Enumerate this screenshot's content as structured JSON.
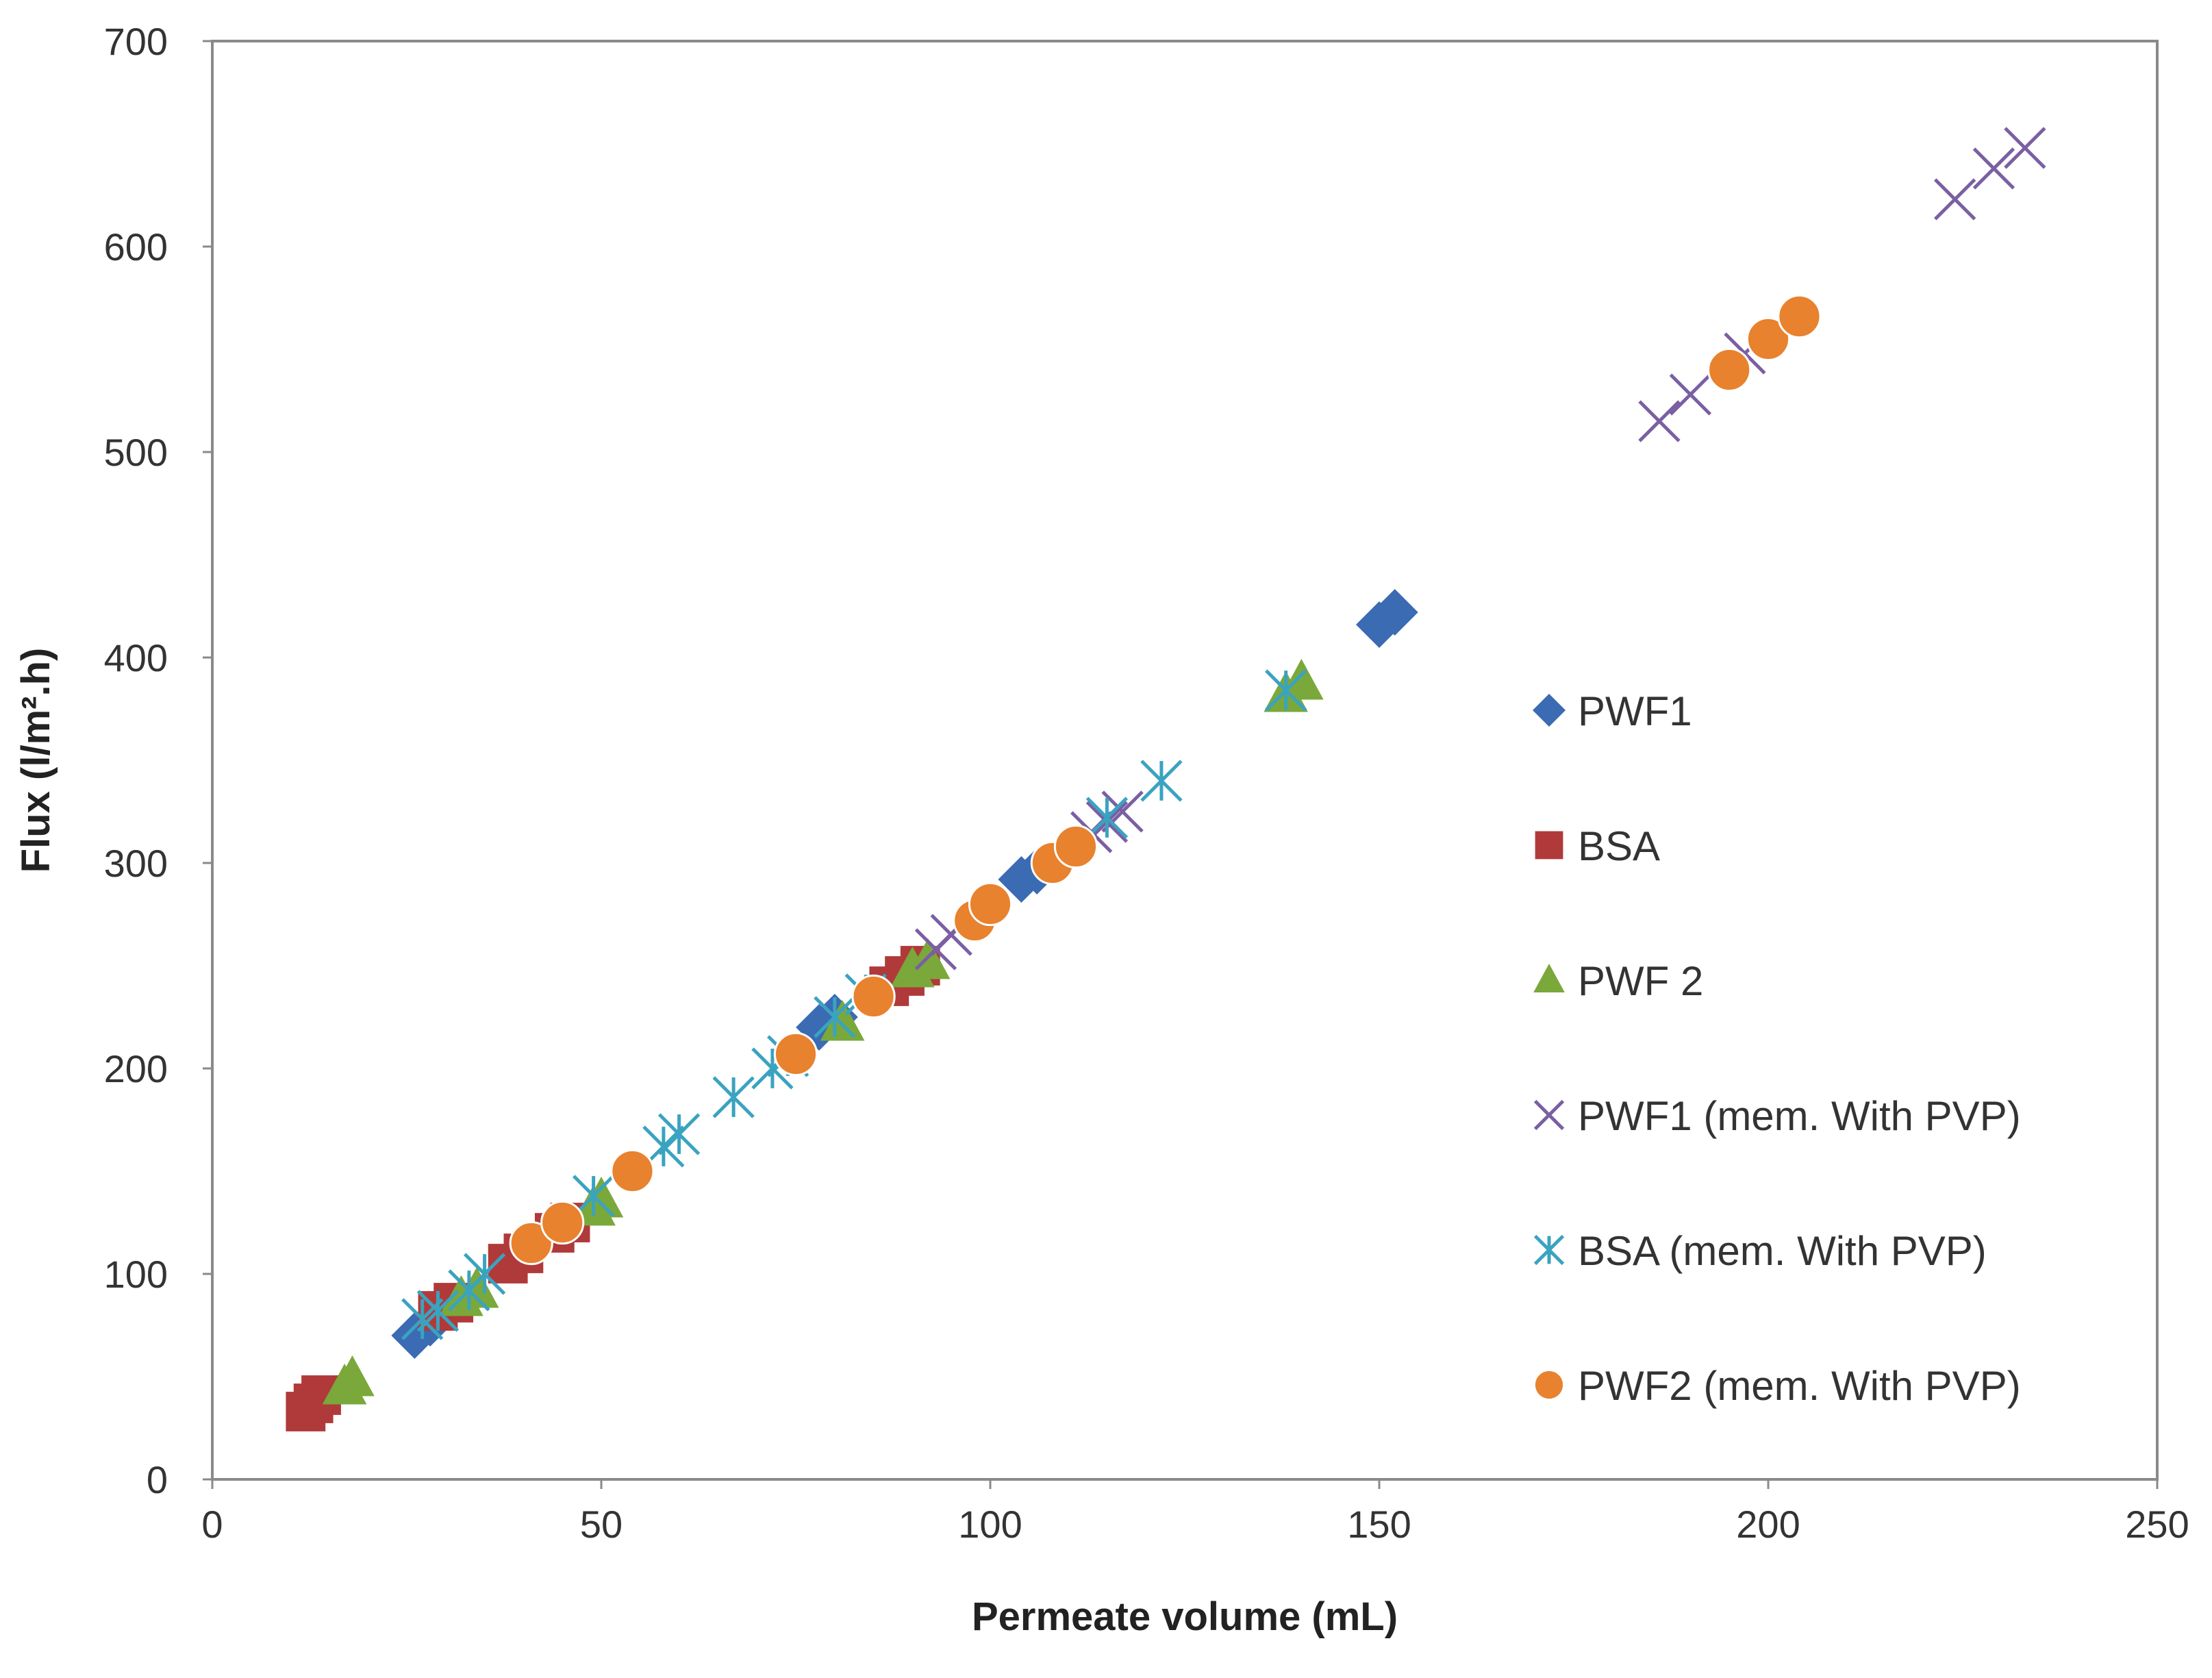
{
  "chart_data": {
    "type": "scatter",
    "title": "",
    "xlabel": "Permeate volume (mL)",
    "ylabel": "Flux (l/m².h)",
    "xlim": [
      0,
      250
    ],
    "ylim": [
      0,
      700
    ],
    "xticks": [
      0,
      50,
      100,
      150,
      200,
      250
    ],
    "yticks": [
      0,
      100,
      200,
      300,
      400,
      500,
      600,
      700
    ],
    "grid": false,
    "legend_position": "right",
    "series": [
      {
        "name": "PWF1",
        "marker": "diamond",
        "color": "#3a6bb3",
        "points": [
          [
            26,
            70
          ],
          [
            28,
            76
          ],
          [
            78,
            220
          ],
          [
            80,
            225
          ],
          [
            104,
            292
          ],
          [
            106,
            296
          ],
          [
            150,
            416
          ],
          [
            152,
            422
          ]
        ]
      },
      {
        "name": "BSA",
        "marker": "square",
        "color": "#b03a3a",
        "points": [
          [
            12,
            33
          ],
          [
            13,
            37
          ],
          [
            14,
            41
          ],
          [
            29,
            82
          ],
          [
            31,
            86
          ],
          [
            38,
            105
          ],
          [
            40,
            110
          ],
          [
            44,
            120
          ],
          [
            46,
            125
          ],
          [
            87,
            240
          ],
          [
            89,
            245
          ],
          [
            91,
            250
          ]
        ]
      },
      {
        "name": "PWF 2",
        "marker": "triangle",
        "color": "#7aa83a",
        "points": [
          [
            17,
            45
          ],
          [
            18,
            49
          ],
          [
            32,
            88
          ],
          [
            34,
            92
          ],
          [
            49,
            132
          ],
          [
            50,
            136
          ],
          [
            81,
            222
          ],
          [
            90,
            248
          ],
          [
            92,
            252
          ],
          [
            138,
            382
          ],
          [
            140,
            388
          ]
        ]
      },
      {
        "name": "PWF1 (mem. With PVP)",
        "marker": "x",
        "color": "#7a5fa3",
        "points": [
          [
            93,
            258
          ],
          [
            95,
            265
          ],
          [
            113,
            315
          ],
          [
            115,
            320
          ],
          [
            117,
            325
          ],
          [
            186,
            515
          ],
          [
            190,
            528
          ],
          [
            197,
            548
          ],
          [
            224,
            623
          ],
          [
            229,
            638
          ],
          [
            233,
            648
          ]
        ]
      },
      {
        "name": "BSA (mem. With PVP)",
        "marker": "asterisk",
        "color": "#3aa3c0",
        "points": [
          [
            27,
            78
          ],
          [
            29,
            82
          ],
          [
            33,
            92
          ],
          [
            35,
            100
          ],
          [
            49,
            138
          ],
          [
            58,
            162
          ],
          [
            60,
            168
          ],
          [
            67,
            186
          ],
          [
            72,
            200
          ],
          [
            74,
            206
          ],
          [
            80,
            225
          ],
          [
            84,
            236
          ],
          [
            115,
            322
          ],
          [
            122,
            340
          ],
          [
            138,
            384
          ]
        ]
      },
      {
        "name": "PWF2 (mem. With PVP)",
        "marker": "circle",
        "color": "#e8822e",
        "points": [
          [
            41,
            115
          ],
          [
            45,
            125
          ],
          [
            54,
            150
          ],
          [
            75,
            207
          ],
          [
            85,
            235
          ],
          [
            98,
            272
          ],
          [
            100,
            280
          ],
          [
            108,
            300
          ],
          [
            111,
            308
          ],
          [
            195,
            540
          ],
          [
            200,
            555
          ],
          [
            204,
            566
          ]
        ]
      }
    ]
  }
}
